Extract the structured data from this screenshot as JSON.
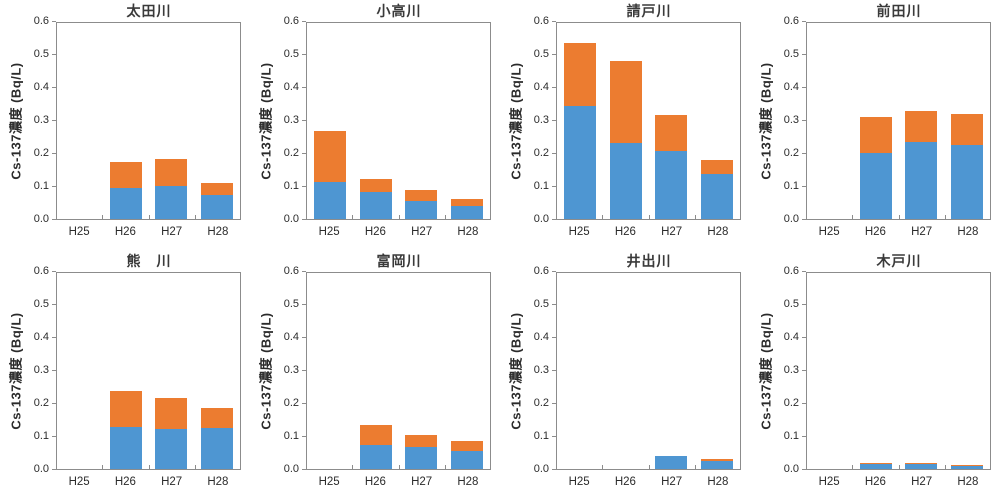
{
  "page": {
    "background": "#ffffff"
  },
  "colors": {
    "bar_blue": "#4e96d2",
    "bar_orange": "#ec7c30",
    "axis_line": "#8c8c8c",
    "text": "#2b2b2b"
  },
  "axis": {
    "y_label": "Cs-137濃度 (Bq/L)",
    "y_ticks": [
      "0.0",
      "0.1",
      "0.2",
      "0.3",
      "0.4",
      "0.5",
      "0.6"
    ],
    "y_min": 0.0,
    "y_max": 0.6,
    "x_categories": [
      "H25",
      "H26",
      "H27",
      "H28"
    ]
  },
  "chart_data": [
    {
      "type": "bar",
      "stacked": true,
      "title": "太田川",
      "categories": [
        "H25",
        "H26",
        "H27",
        "H28"
      ],
      "series": [
        {
          "name": "blue",
          "color": "#4e96d2",
          "values": [
            0,
            0.095,
            0.1,
            0.074
          ]
        },
        {
          "name": "orange",
          "color": "#ec7c30",
          "values": [
            0,
            0.08,
            0.082,
            0.038
          ]
        }
      ],
      "ylabel": "Cs-137濃度 (Bq/L)",
      "ylim": [
        0,
        0.6
      ],
      "grid": false,
      "legend": "none"
    },
    {
      "type": "bar",
      "stacked": true,
      "title": "小高川",
      "categories": [
        "H25",
        "H26",
        "H27",
        "H28"
      ],
      "series": [
        {
          "name": "blue",
          "color": "#4e96d2",
          "values": [
            0.113,
            0.082,
            0.055,
            0.039
          ]
        },
        {
          "name": "orange",
          "color": "#ec7c30",
          "values": [
            0.157,
            0.04,
            0.033,
            0.021
          ]
        }
      ],
      "ylabel": "Cs-137濃度 (Bq/L)",
      "ylim": [
        0,
        0.6
      ],
      "grid": false,
      "legend": "none"
    },
    {
      "type": "bar",
      "stacked": true,
      "title": "請戸川",
      "categories": [
        "H25",
        "H26",
        "H27",
        "H28"
      ],
      "series": [
        {
          "name": "blue",
          "color": "#4e96d2",
          "values": [
            0.345,
            0.233,
            0.207,
            0.139
          ]
        },
        {
          "name": "orange",
          "color": "#ec7c30",
          "values": [
            0.193,
            0.251,
            0.11,
            0.043
          ]
        }
      ],
      "ylabel": "Cs-137濃度 (Bq/L)",
      "ylim": [
        0,
        0.6
      ],
      "grid": false,
      "legend": "none"
    },
    {
      "type": "bar",
      "stacked": true,
      "title": "前田川",
      "categories": [
        "H25",
        "H26",
        "H27",
        "H28"
      ],
      "series": [
        {
          "name": "blue",
          "color": "#4e96d2",
          "values": [
            0,
            0.203,
            0.235,
            0.225
          ]
        },
        {
          "name": "orange",
          "color": "#ec7c30",
          "values": [
            0,
            0.11,
            0.095,
            0.094
          ]
        }
      ],
      "ylabel": "Cs-137濃度 (Bq/L)",
      "ylim": [
        0,
        0.6
      ],
      "grid": false,
      "legend": "none"
    },
    {
      "type": "bar",
      "stacked": true,
      "title": "熊　川",
      "categories": [
        "H25",
        "H26",
        "H27",
        "H28"
      ],
      "series": [
        {
          "name": "blue",
          "color": "#4e96d2",
          "values": [
            0,
            0.13,
            0.123,
            0.127
          ]
        },
        {
          "name": "orange",
          "color": "#ec7c30",
          "values": [
            0,
            0.109,
            0.094,
            0.061
          ]
        }
      ],
      "ylabel": "Cs-137濃度 (Bq/L)",
      "ylim": [
        0,
        0.6
      ],
      "grid": false,
      "legend": "none"
    },
    {
      "type": "bar",
      "stacked": true,
      "title": "富岡川",
      "categories": [
        "H25",
        "H26",
        "H27",
        "H28"
      ],
      "series": [
        {
          "name": "blue",
          "color": "#4e96d2",
          "values": [
            0,
            0.072,
            0.068,
            0.056
          ]
        },
        {
          "name": "orange",
          "color": "#ec7c30",
          "values": [
            0,
            0.06,
            0.037,
            0.03
          ]
        }
      ],
      "ylabel": "Cs-137濃度 (Bq/L)",
      "ylim": [
        0,
        0.6
      ],
      "grid": false,
      "legend": "none"
    },
    {
      "type": "bar",
      "stacked": true,
      "title": "井出川",
      "categories": [
        "H25",
        "H26",
        "H27",
        "H28"
      ],
      "series": [
        {
          "name": "blue",
          "color": "#4e96d2",
          "values": [
            0,
            0,
            0.04,
            0.023
          ]
        },
        {
          "name": "orange",
          "color": "#ec7c30",
          "values": [
            0,
            0,
            0,
            0.006
          ]
        }
      ],
      "ylabel": "Cs-137濃度 (Bq/L)",
      "ylim": [
        0,
        0.6
      ],
      "grid": false,
      "legend": "none"
    },
    {
      "type": "bar",
      "stacked": true,
      "title": "木戸川",
      "categories": [
        "H25",
        "H26",
        "H27",
        "H28"
      ],
      "series": [
        {
          "name": "blue",
          "color": "#4e96d2",
          "values": [
            0,
            0.014,
            0.014,
            0.009
          ]
        },
        {
          "name": "orange",
          "color": "#ec7c30",
          "values": [
            0,
            0.004,
            0.001,
            0.001
          ]
        }
      ],
      "ylabel": "Cs-137濃度 (Bq/L)",
      "ylim": [
        0,
        0.6
      ],
      "grid": false,
      "legend": "none"
    }
  ]
}
